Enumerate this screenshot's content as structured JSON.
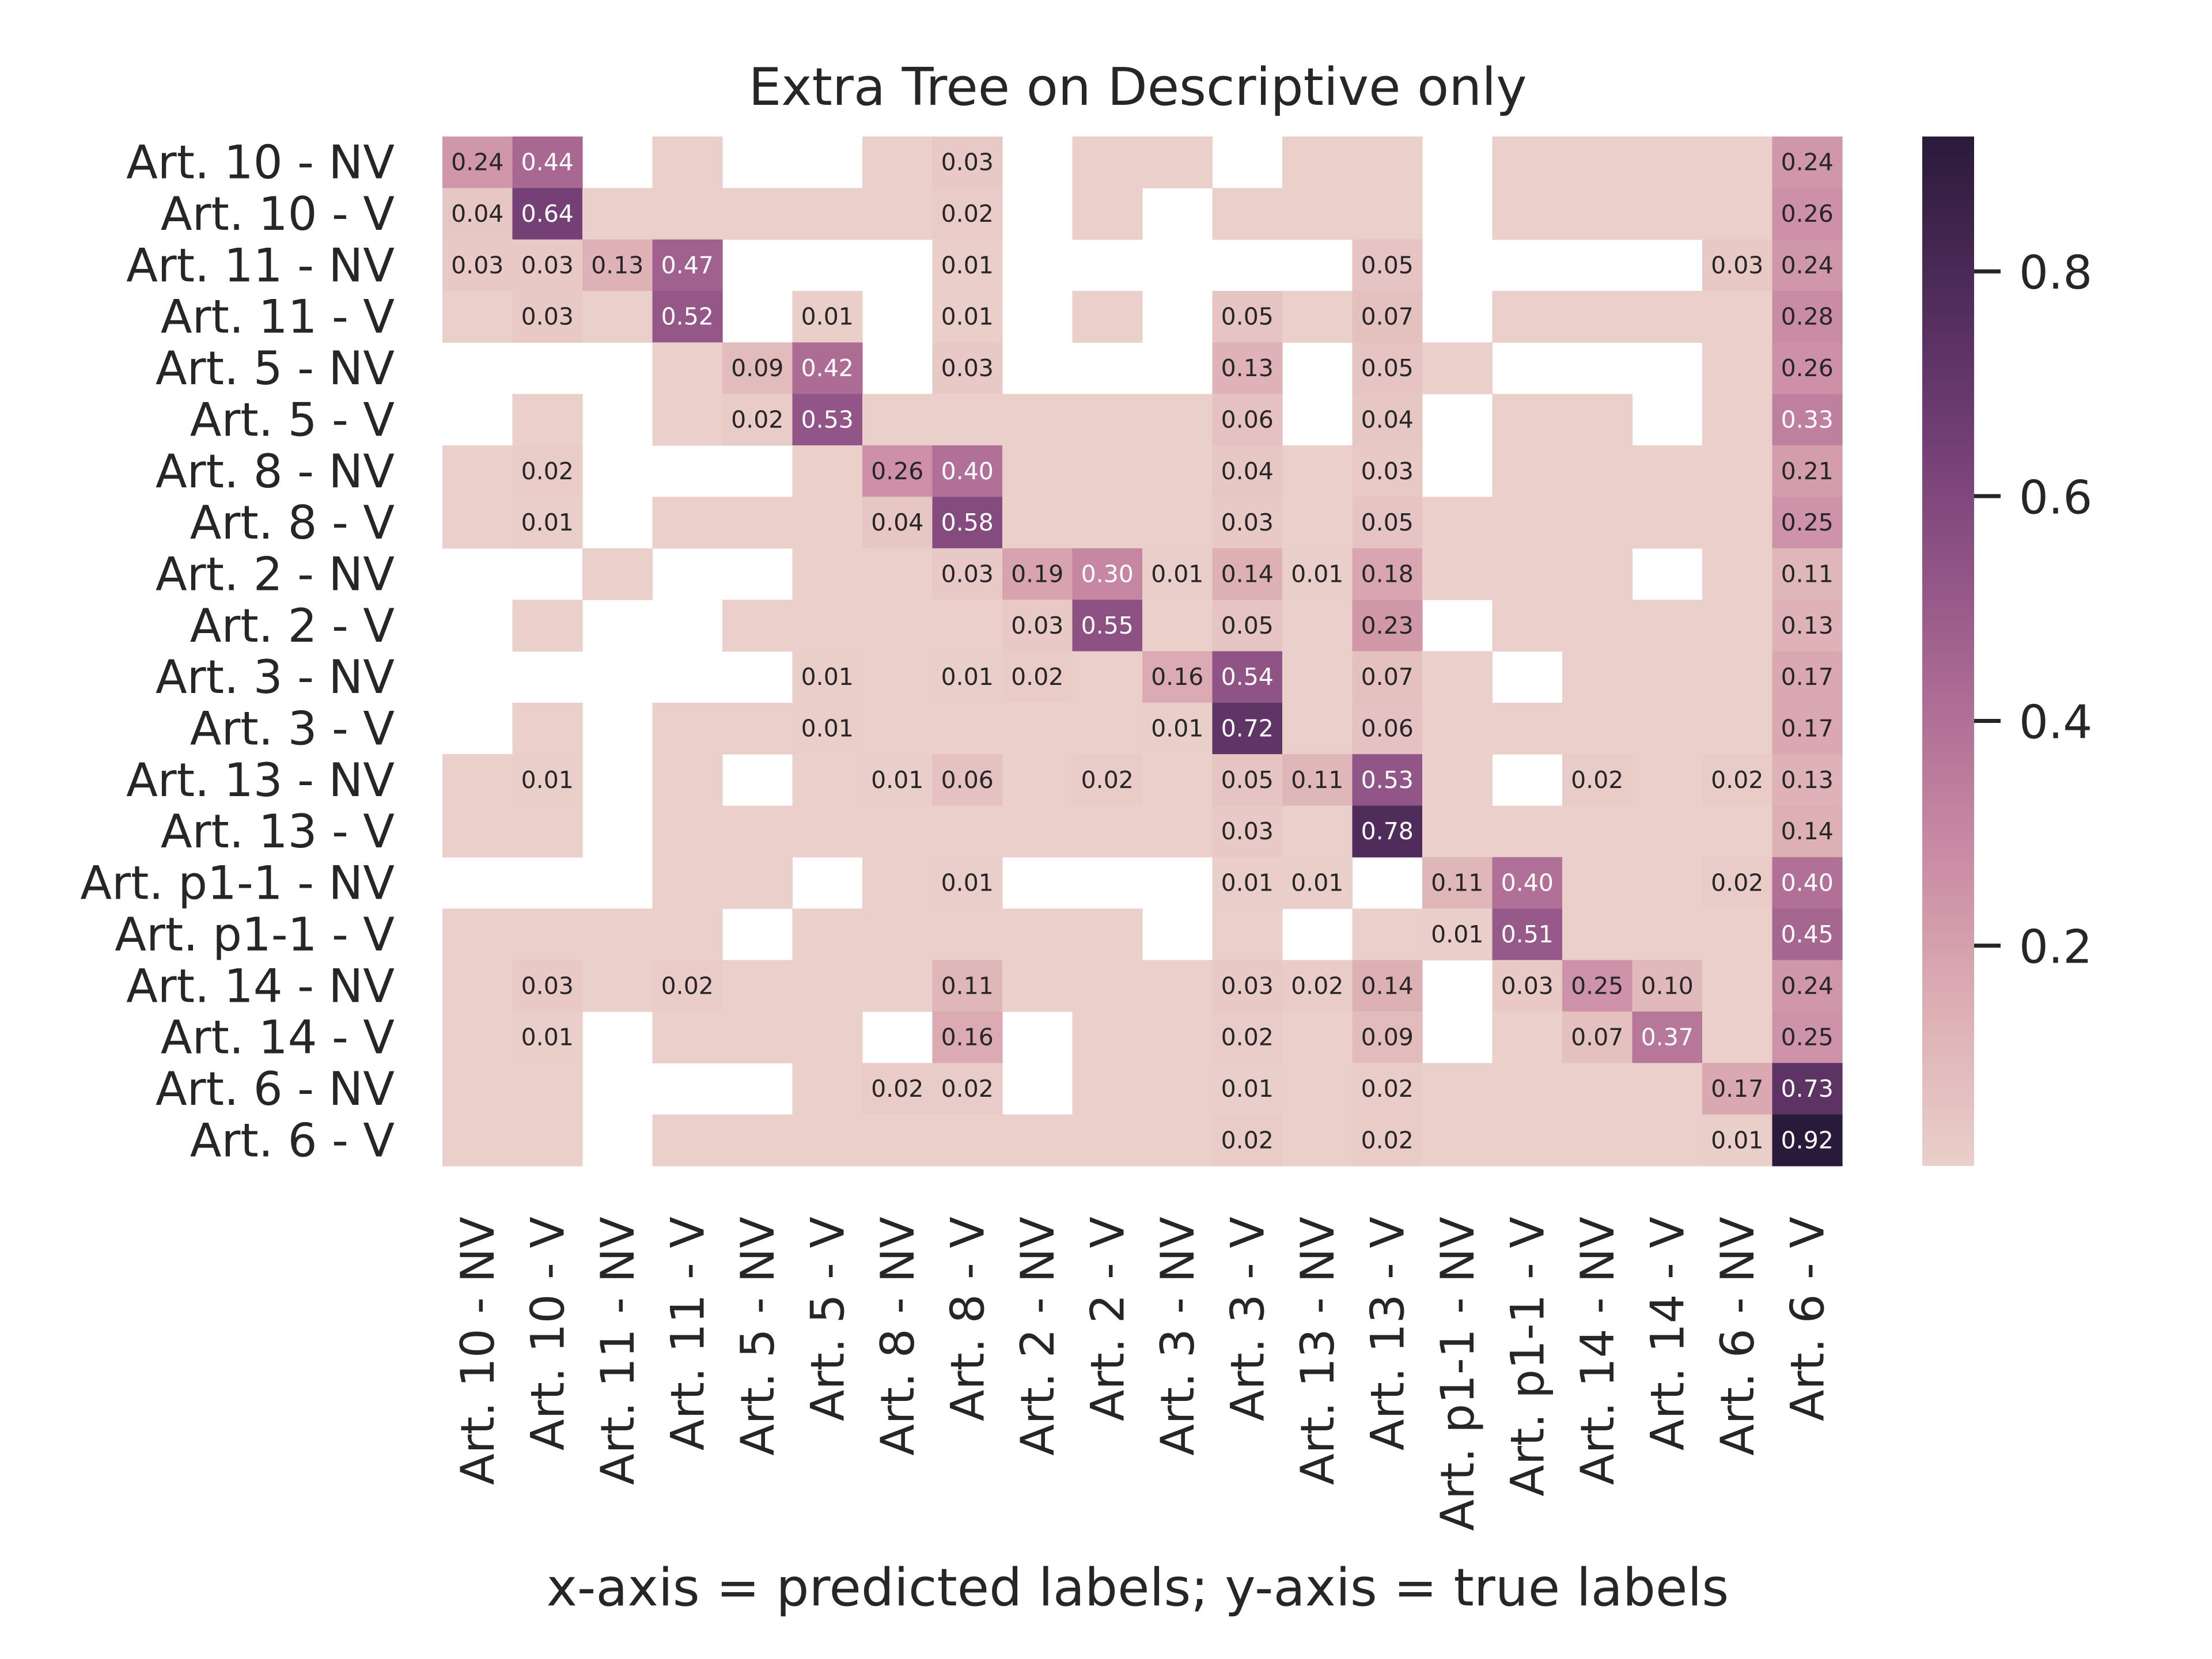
{
  "chart_data": {
    "type": "heatmap",
    "title": "Extra Tree on Descriptive only",
    "xlabel": "x-axis = predicted labels; y-axis = true labels",
    "ylabel": "",
    "x_categories": [
      "Art. 10 - NV",
      "Art. 10 - V",
      "Art. 11 - NV",
      "Art. 11 - V",
      "Art. 5 - NV",
      "Art. 5 - V",
      "Art. 8 - NV",
      "Art. 8 - V",
      "Art. 2 - NV",
      "Art. 2 - V",
      "Art. 3 - NV",
      "Art. 3 - V",
      "Art. 13 - NV",
      "Art. 13 - V",
      "Art. p1-1 - NV",
      "Art. p1-1 - V",
      "Art. 14 - NV",
      "Art. 14 - V",
      "Art. 6 - NV",
      "Art. 6 - V"
    ],
    "y_categories": [
      "Art. 10 - NV",
      "Art. 10 - V",
      "Art. 11 - NV",
      "Art. 11 - V",
      "Art. 5 - NV",
      "Art. 5 - V",
      "Art. 8 - NV",
      "Art. 8 - V",
      "Art. 2 - NV",
      "Art. 2 - V",
      "Art. 3 - NV",
      "Art. 3 - V",
      "Art. 13 - NV",
      "Art. 13 - V",
      "Art. p1-1 - NV",
      "Art. p1-1 - V",
      "Art. 14 - NV",
      "Art. 14 - V",
      "Art. 6 - NV",
      "Art. 6 - V"
    ],
    "values": [
      [
        0.24,
        0.44,
        null,
        0.004,
        null,
        null,
        0.004,
        0.03,
        null,
        0.004,
        0.004,
        null,
        0.004,
        0.004,
        null,
        0.004,
        0.004,
        0.004,
        0.004,
        0.24
      ],
      [
        0.04,
        0.64,
        0.004,
        0.004,
        0.004,
        0.004,
        0.004,
        0.02,
        null,
        0.004,
        null,
        0.004,
        0.004,
        0.004,
        null,
        0.004,
        0.004,
        0.004,
        0.004,
        0.26
      ],
      [
        0.03,
        0.03,
        0.13,
        0.47,
        null,
        null,
        null,
        0.01,
        null,
        null,
        null,
        null,
        null,
        0.05,
        null,
        null,
        null,
        null,
        0.03,
        0.24
      ],
      [
        0.004,
        0.03,
        0.004,
        0.52,
        null,
        0.01,
        null,
        0.01,
        null,
        0.004,
        null,
        0.05,
        0.004,
        0.07,
        null,
        0.004,
        0.004,
        0.004,
        0.004,
        0.28
      ],
      [
        null,
        null,
        null,
        0.004,
        0.09,
        0.42,
        null,
        0.03,
        null,
        null,
        null,
        0.13,
        null,
        0.05,
        0.004,
        null,
        null,
        null,
        0.004,
        0.26
      ],
      [
        null,
        0.004,
        null,
        0.004,
        0.02,
        0.53,
        0.004,
        0.004,
        0.004,
        0.004,
        0.004,
        0.06,
        null,
        0.04,
        null,
        0.004,
        0.004,
        null,
        0.004,
        0.33
      ],
      [
        0.004,
        0.02,
        null,
        null,
        null,
        0.004,
        0.26,
        0.4,
        0.004,
        0.004,
        0.004,
        0.04,
        0.004,
        0.03,
        null,
        0.004,
        0.004,
        0.004,
        0.004,
        0.21
      ],
      [
        0.004,
        0.01,
        null,
        0.004,
        0.004,
        0.004,
        0.04,
        0.58,
        0.004,
        0.004,
        0.004,
        0.03,
        0.004,
        0.05,
        0.004,
        0.004,
        0.004,
        0.004,
        0.004,
        0.25
      ],
      [
        null,
        null,
        0.004,
        null,
        null,
        0.004,
        0.004,
        0.03,
        0.19,
        0.3,
        0.01,
        0.14,
        0.01,
        0.18,
        0.004,
        0.004,
        0.004,
        null,
        0.004,
        0.11
      ],
      [
        null,
        0.004,
        null,
        null,
        0.004,
        0.004,
        0.004,
        0.004,
        0.03,
        0.55,
        0.004,
        0.05,
        0.004,
        0.23,
        null,
        0.004,
        0.004,
        0.004,
        0.004,
        0.13
      ],
      [
        null,
        null,
        null,
        null,
        null,
        0.01,
        0.004,
        0.01,
        0.02,
        0.004,
        0.16,
        0.54,
        0.004,
        0.07,
        0.004,
        null,
        0.004,
        0.004,
        0.004,
        0.17
      ],
      [
        null,
        0.004,
        null,
        0.004,
        0.004,
        0.01,
        0.004,
        0.004,
        0.004,
        0.004,
        0.01,
        0.72,
        0.004,
        0.06,
        0.004,
        0.004,
        0.004,
        0.004,
        0.004,
        0.17
      ],
      [
        0.004,
        0.01,
        null,
        0.004,
        null,
        0.004,
        0.01,
        0.06,
        0.004,
        0.02,
        0.004,
        0.05,
        0.11,
        0.53,
        0.004,
        null,
        0.02,
        0.004,
        0.02,
        0.13
      ],
      [
        0.004,
        0.004,
        null,
        0.004,
        0.004,
        0.004,
        0.004,
        0.004,
        0.004,
        0.004,
        0.004,
        0.03,
        0.004,
        0.78,
        0.004,
        0.004,
        0.004,
        0.004,
        0.004,
        0.14
      ],
      [
        null,
        null,
        null,
        0.004,
        0.004,
        null,
        0.004,
        0.01,
        null,
        null,
        null,
        0.01,
        0.01,
        null,
        0.11,
        0.4,
        0.004,
        0.004,
        0.02,
        0.4
      ],
      [
        0.004,
        0.004,
        0.004,
        0.004,
        null,
        0.004,
        0.004,
        0.004,
        0.004,
        0.004,
        null,
        0.004,
        null,
        0.004,
        0.01,
        0.51,
        0.004,
        0.004,
        0.004,
        0.45
      ],
      [
        0.004,
        0.03,
        0.004,
        0.02,
        0.004,
        0.004,
        0.004,
        0.11,
        0.004,
        0.004,
        0.004,
        0.03,
        0.02,
        0.14,
        null,
        0.03,
        0.25,
        0.1,
        0.004,
        0.24
      ],
      [
        0.004,
        0.01,
        null,
        0.004,
        0.004,
        0.004,
        null,
        0.16,
        null,
        0.004,
        0.004,
        0.02,
        0.004,
        0.09,
        null,
        0.004,
        0.07,
        0.37,
        0.004,
        0.25
      ],
      [
        0.004,
        0.004,
        null,
        null,
        null,
        0.004,
        0.02,
        0.02,
        null,
        0.004,
        0.004,
        0.01,
        0.004,
        0.02,
        0.004,
        0.004,
        0.004,
        0.004,
        0.17,
        0.73
      ],
      [
        0.004,
        0.004,
        null,
        0.004,
        0.004,
        0.004,
        0.004,
        0.004,
        0.004,
        0.004,
        0.004,
        0.02,
        0.004,
        0.02,
        0.004,
        0.004,
        0.004,
        0.004,
        0.01,
        0.92
      ]
    ],
    "annotation_threshold": 0.005,
    "colorbar": {
      "ticks": [
        0.2,
        0.4,
        0.6,
        0.8
      ],
      "tick_labels": [
        "0.2",
        "0.4",
        "0.6",
        "0.8"
      ],
      "min": 0.004,
      "max": 0.92
    },
    "colormap": {
      "stops": [
        "#eacfca",
        "#deb1b5",
        "#cc8fa6",
        "#b27197",
        "#935587",
        "#703d73",
        "#4d2b58",
        "#2a1a3a"
      ]
    },
    "grid": false,
    "legend": "colorbar-right"
  }
}
